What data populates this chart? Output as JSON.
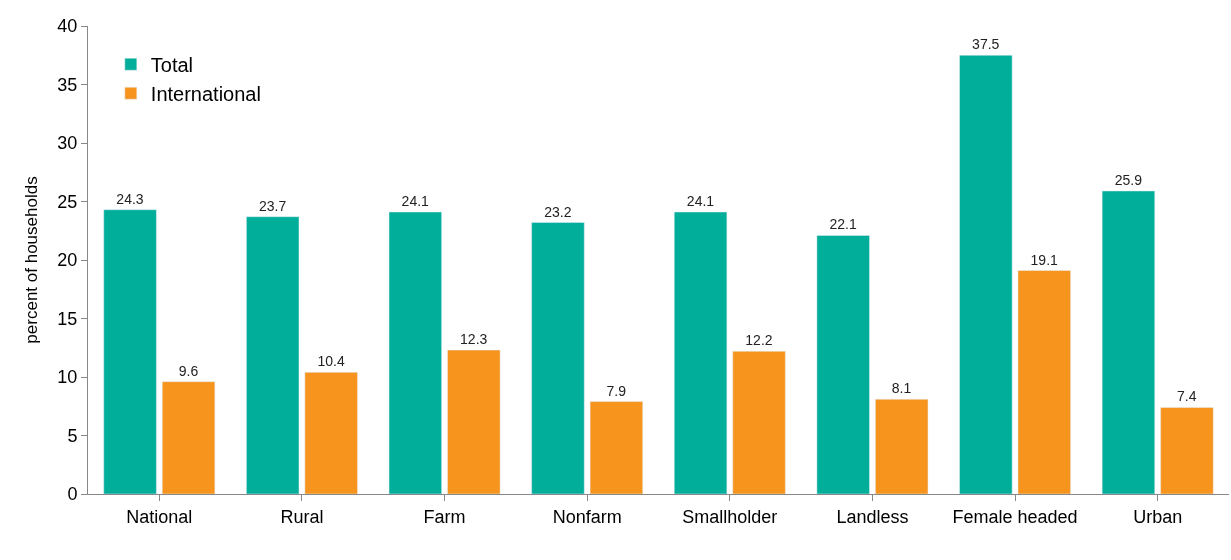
{
  "chart_data": {
    "type": "bar",
    "ylabel": "percent of households",
    "categories": [
      "National",
      "Rural",
      "Farm",
      "Nonfarm",
      "Smallholder",
      "Landless",
      "Female headed",
      "Urban"
    ],
    "series": [
      {
        "name": "Total",
        "color": "#00ae9a",
        "values": [
          24.3,
          23.7,
          24.1,
          23.2,
          24.1,
          22.1,
          37.5,
          25.9
        ]
      },
      {
        "name": "International",
        "color": "#f7941d",
        "values": [
          9.6,
          10.4,
          12.3,
          7.9,
          12.2,
          8.1,
          19.1,
          7.4
        ]
      }
    ],
    "ylim": [
      0,
      40
    ],
    "yticks": [
      0,
      5,
      10,
      15,
      20,
      25,
      30,
      35,
      40
    ],
    "grid": false,
    "legend": "top left",
    "data_labels": true
  }
}
